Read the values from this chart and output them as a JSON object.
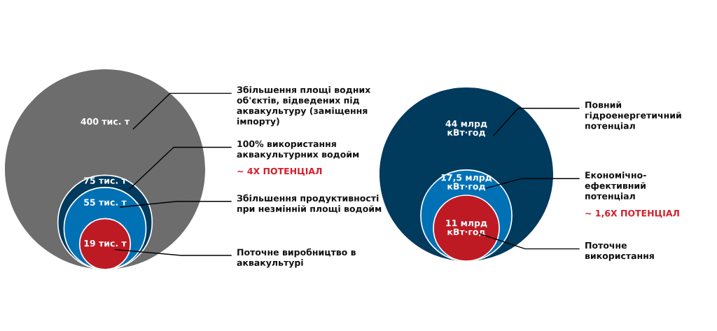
{
  "chart_data": [
    {
      "type": "other",
      "categories": [
        "Збільшення площі водних\nоб'єктів, відведених під\nаквакультуру (заміщення\nімпорту)",
        "100% використання\nаквакультурних водойм",
        "Збільшення продуктивності\nпри незмінній площі водойм",
        "Поточне виробництво в\nаквакультурі"
      ],
      "values": [
        400,
        75,
        55,
        19
      ],
      "value_labels": [
        "400 тис. т",
        "75 тис. т",
        "55 тис. т",
        "19 тис. т"
      ],
      "colors": [
        "#6d6d6d",
        "#003a5d",
        "#0071b5",
        "#be1a24"
      ],
      "annotations": [
        "~ 4X ПОТЕНЦІАЛ"
      ]
    },
    {
      "type": "other",
      "categories": [
        "Повний\nгідроенергетичний\nпотенціал",
        "Економічно-\nефективний\nпотенціал",
        "Поточне\nвикористання"
      ],
      "values": [
        44,
        17.5,
        11
      ],
      "value_labels": [
        "44 млрд\nкВт·год",
        "17,5 млрд\nкВт·год",
        "11 млрд\nкВт·год"
      ],
      "colors": [
        "#003a5d",
        "#0071b5",
        "#be1a24"
      ],
      "annotations": [
        "~ 1,6X ПОТЕНЦІАЛ"
      ]
    }
  ]
}
